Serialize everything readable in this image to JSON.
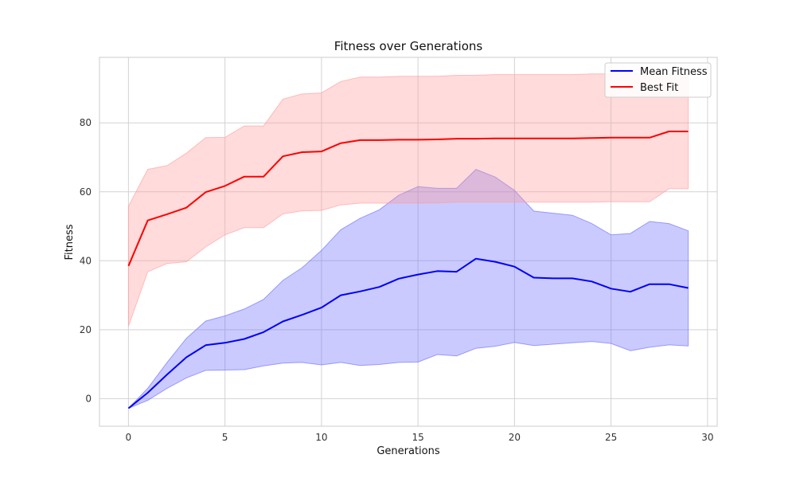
{
  "chart_data": {
    "type": "line",
    "title": "Fitness over Generations",
    "xlabel": "Generations",
    "ylabel": "Fitness",
    "xlim": [
      -1.5,
      30.5
    ],
    "ylim": [
      -8,
      99
    ],
    "xticks": [
      0,
      5,
      10,
      15,
      20,
      25,
      30
    ],
    "yticks": [
      0,
      20,
      40,
      60,
      80
    ],
    "grid": true,
    "legend_position": "top-right",
    "x": [
      0,
      1,
      2,
      3,
      4,
      5,
      6,
      7,
      8,
      9,
      10,
      11,
      12,
      13,
      14,
      15,
      16,
      17,
      18,
      19,
      20,
      21,
      22,
      23,
      24,
      25,
      26,
      27,
      28,
      29
    ],
    "series": [
      {
        "name": "Mean Fitness",
        "color": "#0000ff",
        "band_color": "#6666ff",
        "values": [
          -2.8,
          1.7,
          7.0,
          12.0,
          15.5,
          16.2,
          17.3,
          19.3,
          22.4,
          24.3,
          26.4,
          30.0,
          31.1,
          32.4,
          34.8,
          36.0,
          37.0,
          36.8,
          40.6,
          39.7,
          38.3,
          35.1,
          34.9,
          34.9,
          34.0,
          31.9,
          31.0,
          33.2,
          33.2,
          32.1
        ],
        "band_upper": [
          -2.8,
          3.0,
          10.5,
          17.5,
          22.5,
          24.0,
          26.0,
          28.8,
          34.3,
          38.0,
          43.0,
          49.0,
          52.3,
          54.8,
          59.0,
          61.5,
          61.0,
          61.0,
          66.5,
          64.3,
          60.4,
          54.4,
          53.8,
          53.2,
          50.8,
          47.5,
          47.9,
          51.4,
          50.8,
          48.7
        ],
        "band_lower": [
          -2.8,
          -0.5,
          3.0,
          6.0,
          8.2,
          8.3,
          8.4,
          9.5,
          10.3,
          10.5,
          9.8,
          10.5,
          9.6,
          9.9,
          10.5,
          10.6,
          12.8,
          12.4,
          14.6,
          15.2,
          16.3,
          15.4,
          15.8,
          16.2,
          16.6,
          16.0,
          13.9,
          14.9,
          15.6,
          15.3
        ]
      },
      {
        "name": "Best Fit",
        "color": "#ff0000",
        "band_color": "#ff9999",
        "values": [
          38.5,
          51.7,
          53.5,
          55.4,
          59.9,
          61.7,
          64.4,
          64.4,
          70.3,
          71.5,
          71.7,
          74.1,
          75.0,
          75.0,
          75.1,
          75.1,
          75.2,
          75.4,
          75.4,
          75.5,
          75.5,
          75.5,
          75.5,
          75.5,
          75.6,
          75.7,
          75.7,
          75.7,
          77.5,
          77.5
        ],
        "band_upper": [
          55.8,
          66.5,
          67.6,
          71.2,
          75.7,
          75.8,
          79.1,
          79.1,
          86.9,
          88.4,
          88.7,
          92.0,
          93.3,
          93.3,
          93.5,
          93.5,
          93.5,
          93.8,
          93.8,
          94.0,
          94.0,
          94.0,
          94.0,
          94.0,
          94.2,
          94.2,
          94.3,
          94.3,
          94.3,
          94.3
        ],
        "band_lower": [
          21.0,
          36.8,
          39.2,
          39.7,
          44.0,
          47.5,
          49.6,
          49.6,
          53.6,
          54.5,
          54.6,
          56.2,
          56.7,
          56.7,
          56.7,
          56.7,
          56.8,
          57.0,
          57.0,
          57.0,
          57.0,
          57.0,
          57.0,
          57.0,
          57.0,
          57.1,
          57.1,
          57.1,
          60.9,
          60.9
        ]
      }
    ]
  }
}
